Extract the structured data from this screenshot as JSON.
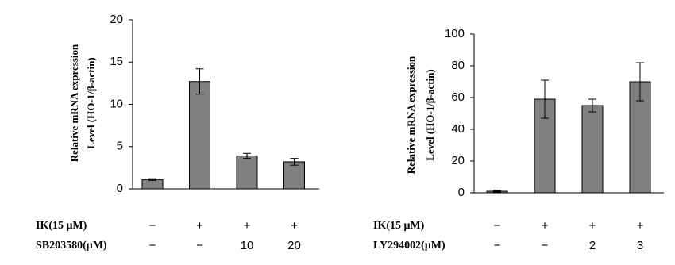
{
  "chart_data": [
    {
      "type": "bar",
      "ylabel": [
        "Relative mRNA expression",
        "Level (HO-1/β-actin)"
      ],
      "values": [
        1.1,
        12.7,
        3.9,
        3.2
      ],
      "errors": [
        0.1,
        1.5,
        0.3,
        0.4
      ],
      "color": "#808080",
      "ylim": [
        0,
        20
      ],
      "yticks": [
        0,
        5,
        10,
        15,
        20
      ],
      "rows": [
        {
          "label": "IK(15 μM)",
          "cells": [
            "−",
            "+",
            "+",
            "+"
          ]
        },
        {
          "label": "SB203580(μM)",
          "cells": [
            "−",
            "−",
            "10",
            "20"
          ]
        }
      ]
    },
    {
      "type": "bar",
      "ylabel": [
        "Relative mRNA expression",
        "Level (HO-1/β-actin)"
      ],
      "values": [
        1,
        59,
        55,
        70
      ],
      "errors": [
        0.5,
        12,
        4,
        12
      ],
      "color": "#808080",
      "ylim": [
        0,
        100
      ],
      "yticks": [
        0,
        20,
        40,
        60,
        80,
        100
      ],
      "rows": [
        {
          "label": "IK(15 μM)",
          "cells": [
            "−",
            "+",
            "+",
            "+"
          ]
        },
        {
          "label": "LY294002(μM)",
          "cells": [
            "−",
            "−",
            "2",
            "3"
          ]
        }
      ]
    }
  ]
}
